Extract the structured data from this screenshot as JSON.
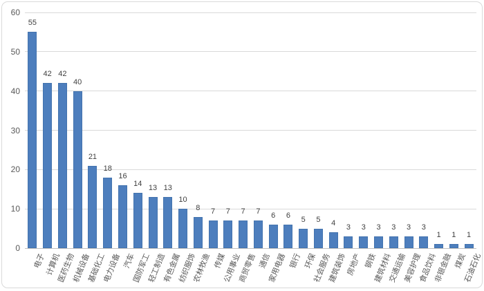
{
  "chart_data": {
    "type": "bar",
    "title": "",
    "xlabel": "",
    "ylabel": "",
    "categories": [
      "电子",
      "计算机",
      "医药生物",
      "机械设备",
      "基础化工",
      "电力设备",
      "汽车",
      "国防军工",
      "轻工制造",
      "有色金属",
      "纺织服饰",
      "农林牧渔",
      "传媒",
      "公用事业",
      "商贸零售",
      "通信",
      "家用电器",
      "银行",
      "环保",
      "社会服务",
      "建筑装饰",
      "房地产",
      "钢铁",
      "建筑材料",
      "交通运输",
      "美容护理",
      "食品饮料",
      "非银金融",
      "煤炭",
      "石油石化"
    ],
    "values": [
      55,
      42,
      42,
      40,
      21,
      18,
      16,
      14,
      13,
      13,
      10,
      8,
      7,
      7,
      7,
      7,
      6,
      6,
      5,
      5,
      4,
      3,
      3,
      3,
      3,
      3,
      3,
      1,
      1,
      1
    ],
    "ylim": [
      0,
      60
    ],
    "yticks": [
      0,
      10,
      20,
      30,
      40,
      50,
      60
    ],
    "grid": true,
    "legend": "none",
    "data_labels": true
  },
  "colors": {
    "bar": "#4d7ebd",
    "bar_border": "#4373ae",
    "gridline": "#d9d9d9",
    "axis_line": "#bfbfbf",
    "tick_label": "#595959",
    "value_label": "#3f3f3f",
    "category_label": "#595959",
    "frame_border": "#d9d9d9",
    "background": "#ffffff"
  }
}
